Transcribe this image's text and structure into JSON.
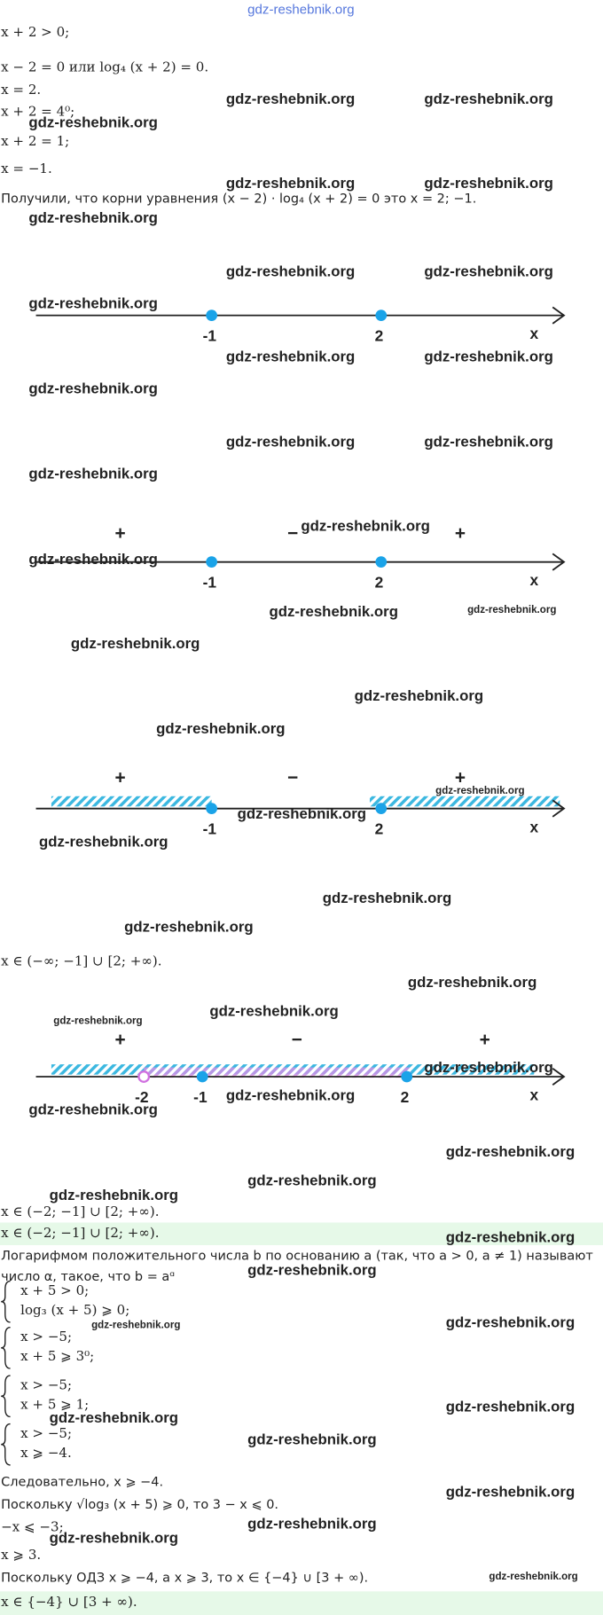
{
  "watermark": "gdz-reshebnik.org",
  "text_lines": [
    "x + 2 > 0;",
    "x − 2 = 0 или log₄ (x + 2) = 0.",
    "x = 2.",
    "x + 2 = 4⁰;",
    "x + 2 = 1;",
    "x = −1.",
    "Получили, что корни уравнения (x − 2) · log₄ (x + 2) = 0 это x = 2; −1.",
    "x ∈ (−∞; −1] ∪ [2; +∞).",
    "x ∈ (−2; −1] ∪ [2; +∞).",
    "Логарифмом положительного числа b по основанию a (так, что a > 0, a ≠ 1) называют",
    "число α, такое, что b = aᵅ",
    "Следовательно, x ⩾ −4.",
    "Поскольку √log₃ (x + 5) ⩾ 0, то 3 − x ⩽ 0.",
    "−x ⩽ −3;",
    "x ⩾ 3.",
    "Поскольку ОДЗ x ⩾ −4, а x ⩾ 3, то x ∈ {−4} ∪ [3 + ∞)."
  ],
  "number_lines": [
    {
      "points": [
        "-1",
        "2"
      ],
      "axis_label": "x"
    },
    {
      "points": [
        "-1",
        "2"
      ],
      "signs": [
        "+",
        "−",
        "+"
      ],
      "axis_label": "x"
    },
    {
      "points": [
        "-1",
        "2"
      ],
      "signs": [
        "+",
        "−",
        "+"
      ],
      "axis_label": "x"
    },
    {
      "points": [
        "-2",
        "-1",
        "2"
      ],
      "signs": [
        "+",
        "−",
        "+"
      ],
      "axis_label": "x"
    }
  ],
  "systems": [
    [
      "x + 5 > 0;",
      "log₃ (x + 5) ⩾ 0;"
    ],
    [
      "x > −5;",
      "x + 5 ⩾ 3⁰;"
    ],
    [
      "x > −5;",
      "x + 5 ⩾ 1;"
    ],
    [
      "x > −5;",
      "x ⩾ −4."
    ]
  ],
  "answers": [
    "x ∈ (−2; −1] ∪ [2; +∞).",
    "x ∈ {−4} ∪ [3 + ∞)."
  ]
}
